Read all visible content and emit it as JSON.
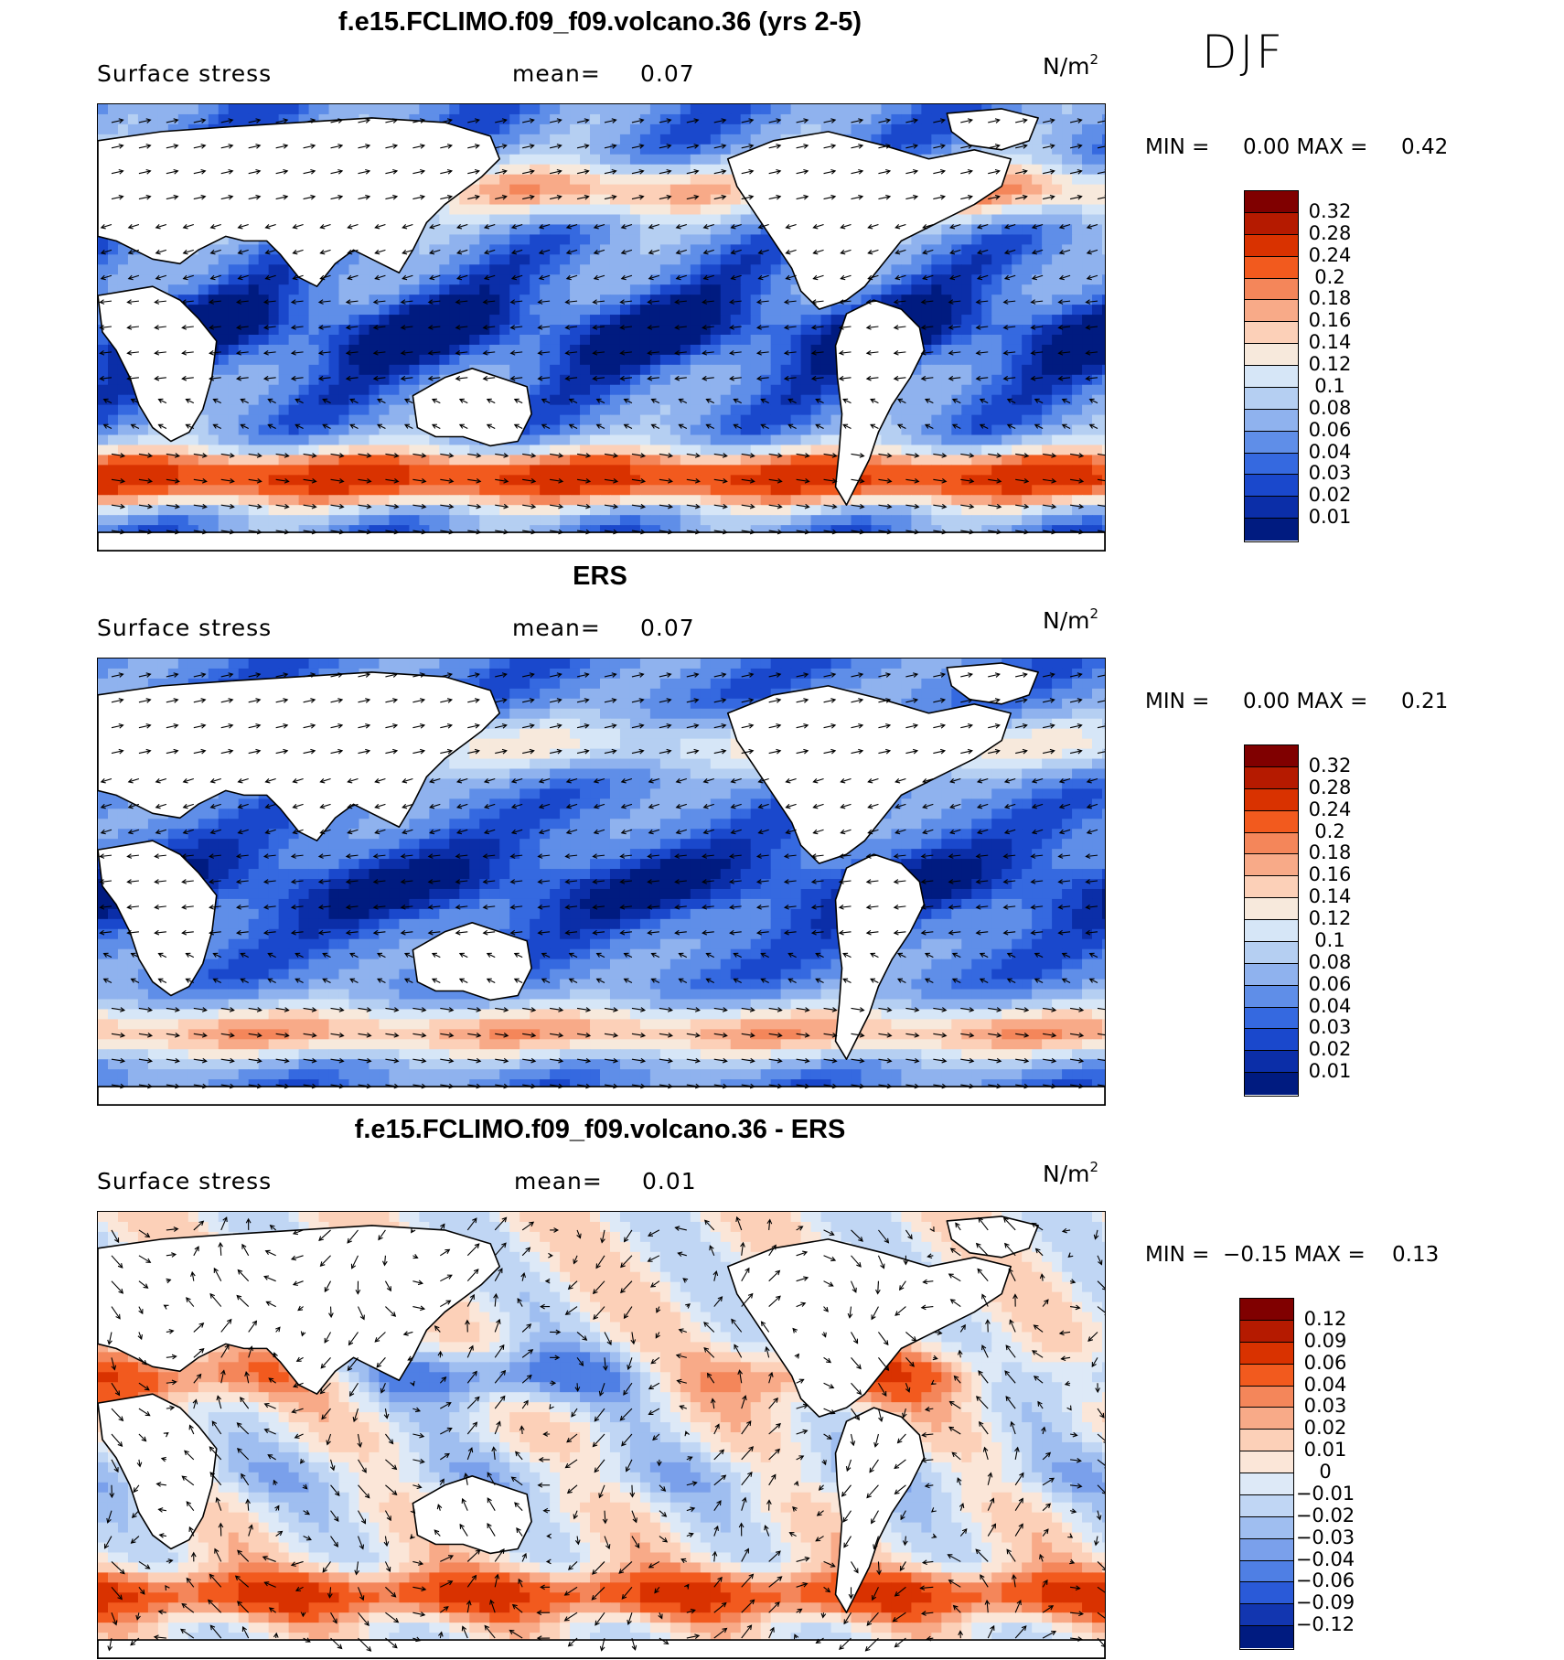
{
  "season": "DJF",
  "panels": [
    {
      "title": "f.e15.FCLIMO.f09_f09.volcano.36 (yrs 2-5)",
      "variable": "Surface stress",
      "mean_label": "mean=",
      "mean_value": "0.07",
      "units_base": "N/m",
      "units_exp": "2",
      "min_label": "MIN =",
      "min_value": "0.00",
      "max_label": "MAX =",
      "max_value": "0.42",
      "colorbar": {
        "colors": [
          "#800000",
          "#b51a00",
          "#d93200",
          "#f25a1e",
          "#f4865a",
          "#f8aa88",
          "#fcd0b8",
          "#f7e9dc",
          "#d6e6f7",
          "#b5cff2",
          "#8fb2ee",
          "#5f8ee8",
          "#3569e0",
          "#1a48cc",
          "#0b2ea8",
          "#001b80"
        ],
        "labels": [
          "0.32",
          "0.28",
          "0.24",
          "0.2",
          "0.18",
          "0.16",
          "0.14",
          "0.12",
          "0.1",
          "0.08",
          "0.06",
          "0.04",
          "0.03",
          "0.02",
          "0.01"
        ]
      }
    },
    {
      "title": "ERS",
      "variable": "Surface stress",
      "mean_label": "mean=",
      "mean_value": "0.07",
      "units_base": "N/m",
      "units_exp": "2",
      "min_label": "MIN =",
      "min_value": "0.00",
      "max_label": "MAX =",
      "max_value": "0.21",
      "colorbar": {
        "colors": [
          "#800000",
          "#b51a00",
          "#d93200",
          "#f25a1e",
          "#f4865a",
          "#f8aa88",
          "#fcd0b8",
          "#f7e9dc",
          "#d6e6f7",
          "#b5cff2",
          "#8fb2ee",
          "#5f8ee8",
          "#3569e0",
          "#1a48cc",
          "#0b2ea8",
          "#001b80"
        ],
        "labels": [
          "0.32",
          "0.28",
          "0.24",
          "0.2",
          "0.18",
          "0.16",
          "0.14",
          "0.12",
          "0.1",
          "0.08",
          "0.06",
          "0.04",
          "0.03",
          "0.02",
          "0.01"
        ]
      }
    },
    {
      "title": "f.e15.FCLIMO.f09_f09.volcano.36 - ERS",
      "variable": "Surface stress",
      "mean_label": "mean=",
      "mean_value": "0.01",
      "units_base": "N/m",
      "units_exp": "2",
      "min_label": "MIN =",
      "min_value": "−0.15",
      "max_label": "MAX =",
      "max_value": "0.13",
      "colorbar": {
        "colors": [
          "#800000",
          "#b51a00",
          "#d93200",
          "#f25a1e",
          "#f4865a",
          "#f8aa88",
          "#fcd0b8",
          "#fbe6d8",
          "#dde9f7",
          "#c0d6f4",
          "#9fbef0",
          "#7aa0eb",
          "#4f7fe4",
          "#2a5ad8",
          "#1236b0",
          "#001b80"
        ],
        "labels": [
          "0.12",
          "0.09",
          "0.06",
          "0.04",
          "0.03",
          "0.02",
          "0.01",
          "0",
          "−0.01",
          "−0.02",
          "−0.03",
          "−0.04",
          "−0.06",
          "−0.09",
          "−0.12"
        ]
      }
    }
  ]
}
